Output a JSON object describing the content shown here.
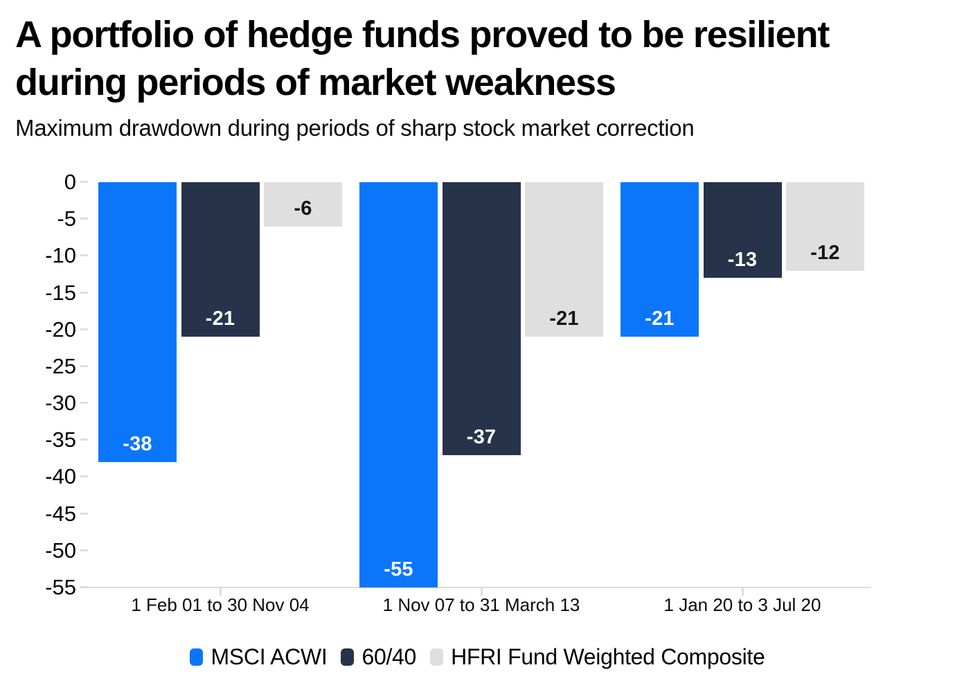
{
  "header": {
    "title_lines": [
      "A portfolio of hedge funds proved to be resilient",
      "during periods of market weakness"
    ],
    "subtitle": "Maximum drawdown during periods of sharp stock market correction"
  },
  "chart_data": {
    "type": "bar",
    "title": "A portfolio of hedge funds proved to be resilient during periods of market weakness",
    "subtitle": "Maximum drawdown during periods of sharp stock market correction",
    "categories": [
      "1 Feb 01 to 30 Nov 04",
      "1 Nov 07 to 31 March 13",
      "1 Jan 20 to 3 Jul 20"
    ],
    "series": [
      {
        "name": "MSCI ACWI",
        "color": "#0b76fa",
        "label_color": "#ffffff",
        "values": [
          -38,
          -55,
          -21
        ]
      },
      {
        "name": "60/40",
        "color": "#26334a",
        "label_color": "#ffffff",
        "values": [
          -21,
          -37,
          -13
        ]
      },
      {
        "name": "HFRI Fund Weighted Composite",
        "color": "#dfdfdf",
        "label_color": "#141414",
        "values": [
          -6,
          -21,
          -12
        ]
      }
    ],
    "y_ticks": [
      0,
      -5,
      -10,
      -15,
      -20,
      -25,
      -30,
      -35,
      -40,
      -45,
      -50,
      -55
    ],
    "ylim": [
      -55,
      0
    ],
    "xlabel": "",
    "ylabel": "",
    "grid": false,
    "legend_position": "bottom",
    "colors": {
      "axis": "#dcdcdc",
      "tick": "#dedede",
      "text": "#000000",
      "background": "#ffffff"
    }
  }
}
